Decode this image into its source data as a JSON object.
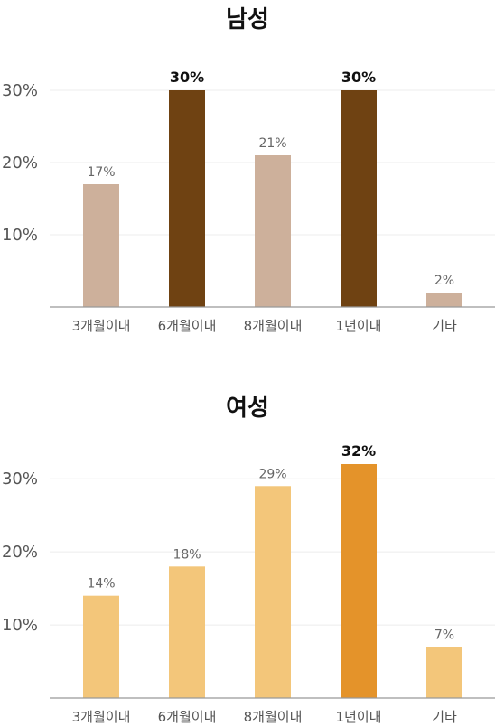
{
  "chart_data": [
    {
      "type": "bar",
      "title": "남성",
      "categories": [
        "3개월이내",
        "6개월이내",
        "8개월이내",
        "1년이내",
        "기타"
      ],
      "values": [
        17,
        30,
        21,
        30,
        2
      ],
      "value_labels": [
        "17%",
        "30%",
        "21%",
        "30%",
        "2%"
      ],
      "highlight": [
        false,
        true,
        false,
        true,
        false
      ],
      "yticks": [
        10,
        20,
        30
      ],
      "ytick_labels": [
        "10%",
        "20%",
        "30%"
      ],
      "ylim": [
        0,
        30
      ],
      "grid": true,
      "colors": {
        "normal": "#cdb09b",
        "highlight": "#6f4212"
      }
    },
    {
      "type": "bar",
      "title": "여성",
      "categories": [
        "3개월이내",
        "6개월이내",
        "8개월이내",
        "1년이내",
        "기타"
      ],
      "values": [
        14,
        18,
        29,
        32,
        7
      ],
      "value_labels": [
        "14%",
        "18%",
        "29%",
        "32%",
        "7%"
      ],
      "highlight": [
        false,
        false,
        false,
        true,
        false
      ],
      "yticks": [
        10,
        20,
        30
      ],
      "ytick_labels": [
        "10%",
        "20%",
        "30%"
      ],
      "ylim": [
        0,
        32
      ],
      "grid": true,
      "colors": {
        "normal": "#f3c67a",
        "highlight": "#e4932a"
      }
    }
  ]
}
